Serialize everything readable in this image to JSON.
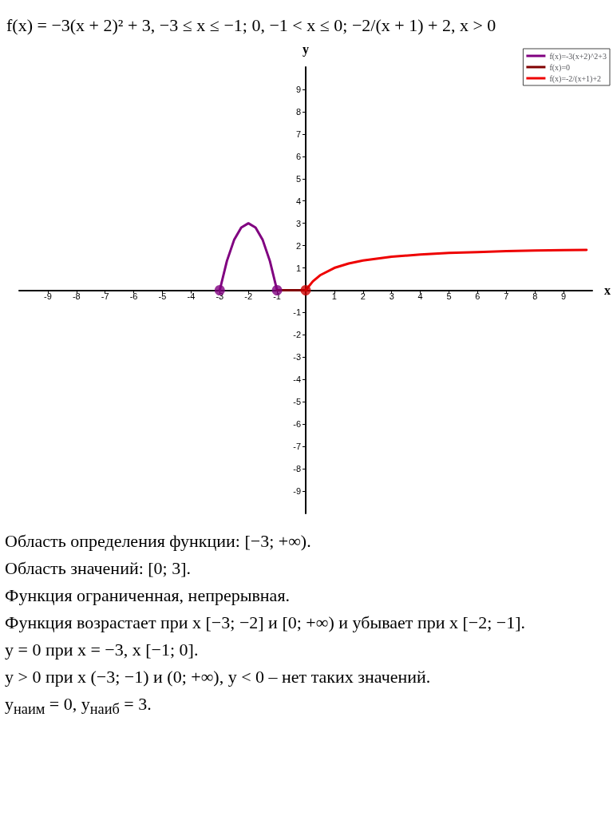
{
  "chart_data": {
    "type": "line",
    "title": "f(x) = −3(x + 2)² + 3,  −3 ≤ x ≤ −1;   0,  −1 < x ≤ 0;   −2/(x + 1) + 2,  x > 0",
    "xlabel": "x",
    "ylabel": "y",
    "xlim": [
      -10,
      10
    ],
    "ylim": [
      -10,
      10
    ],
    "xticks": [
      -9,
      -8,
      -7,
      -6,
      -5,
      -4,
      -3,
      -2,
      -1,
      {
        "value": 0,
        "label": null
      },
      1,
      2,
      3,
      4,
      5,
      6,
      7,
      8,
      9
    ],
    "yticks": [
      -9,
      -8,
      -7,
      -6,
      -5,
      -4,
      -3,
      -2,
      -1,
      {
        "value": 0,
        "label": null
      },
      1,
      2,
      3,
      4,
      5,
      6,
      7,
      8,
      9
    ],
    "legend": "top right",
    "series": [
      {
        "name": "f(x)=-3(x+2)^2+3",
        "color": "#800080",
        "x": [
          -3,
          -2.75,
          -2.5,
          -2.25,
          -2,
          -1.75,
          -1.5,
          -1.25,
          -1
        ],
        "values": [
          0,
          1.31,
          2.25,
          2.81,
          3,
          2.81,
          2.25,
          1.31,
          0
        ]
      },
      {
        "name": "f(x)=0",
        "color": "#800000",
        "x": [
          -1,
          0
        ],
        "values": [
          0,
          0
        ]
      },
      {
        "name": "f(x)=-2/(x+1)+2",
        "color": "#ee0000",
        "x": [
          0,
          0.25,
          0.5,
          1,
          1.5,
          2,
          3,
          4,
          5,
          6,
          7,
          8,
          9,
          9.8
        ],
        "values": [
          0,
          0.4,
          0.67,
          1,
          1.2,
          1.33,
          1.5,
          1.6,
          1.67,
          1.71,
          1.75,
          1.78,
          1.8,
          1.81
        ]
      },
      {
        "type": "scatter",
        "x": [
          -3,
          -1,
          0
        ],
        "values": [
          0,
          0,
          0
        ],
        "colors": [
          "#800080",
          "#800080",
          "#cc0000"
        ]
      }
    ],
    "annotations": [
      "Область определения функции: [−3; +∞).",
      "Область значений: [0; 3].",
      "Функция ограниченная, непрерывная.",
      "Функция возрастает при x [−3; −2] и [0; +∞) и убывает при x [−2; −1].",
      "y = 0 при x = −3, x [−1; 0].",
      "y > 0 при x (−3; −1) и (0; +∞), y < 0 – нет таких значений.",
      "y$_{наим}$ = 0,   y$_{наиб}$ = 3."
    ]
  }
}
